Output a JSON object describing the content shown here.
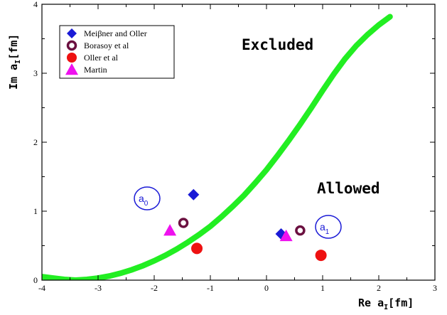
{
  "chart_data": {
    "type": "scatter",
    "xlabel_main": "Re a",
    "xlabel_sub": "I",
    "xlabel_unit": "[fm]",
    "ylabel_main": "Im a",
    "ylabel_sub": "I",
    "ylabel_unit": "[fm]",
    "xlim": [
      -4,
      3
    ],
    "ylim": [
      0,
      4
    ],
    "x_ticks": [
      -4,
      -3,
      -2,
      -1,
      0,
      1,
      2,
      3
    ],
    "y_ticks": [
      0,
      1,
      2,
      3,
      4
    ],
    "grid": false,
    "legend_position": "top-left",
    "annotations": {
      "excluded": "Excluded",
      "allowed": "Allowed",
      "a0_main": "a",
      "a0_sub": "0",
      "a1_main": "a",
      "a1_sub": "1"
    },
    "boundary_curve": {
      "color": "#22ee22",
      "x": [
        -4.0,
        -3.8,
        -3.6,
        -3.4,
        -3.2,
        -3.0,
        -2.8,
        -2.6,
        -2.4,
        -2.2,
        -2.0,
        -1.8,
        -1.6,
        -1.4,
        -1.2,
        -1.0,
        -0.8,
        -0.6,
        -0.4,
        -0.2,
        0.0,
        0.2,
        0.4,
        0.6,
        0.8,
        1.0,
        1.2,
        1.4,
        1.6,
        1.8,
        2.0,
        2.2
      ],
      "y": [
        0.05,
        0.03,
        0.01,
        0.0,
        0.01,
        0.03,
        0.06,
        0.1,
        0.15,
        0.21,
        0.28,
        0.36,
        0.45,
        0.55,
        0.66,
        0.78,
        0.92,
        1.07,
        1.23,
        1.41,
        1.6,
        1.81,
        2.03,
        2.26,
        2.5,
        2.75,
        2.99,
        3.21,
        3.4,
        3.56,
        3.7,
        3.82
      ]
    },
    "series": [
      {
        "name": "Meiβner and Oller",
        "marker": "diamond",
        "color": "#1a1ad6",
        "points": [
          {
            "x": -1.3,
            "y": 1.24
          },
          {
            "x": 0.26,
            "y": 0.67
          }
        ]
      },
      {
        "name": "Borasoy et al",
        "marker": "ring",
        "color": "#6b1040",
        "points": [
          {
            "x": -1.48,
            "y": 0.83
          },
          {
            "x": 0.6,
            "y": 0.72
          }
        ]
      },
      {
        "name": "Oller et al",
        "marker": "circle",
        "color": "#ee1111",
        "points": [
          {
            "x": -1.24,
            "y": 0.46
          },
          {
            "x": 0.97,
            "y": 0.36
          }
        ]
      },
      {
        "name": "Martin",
        "marker": "triangle",
        "color": "#ee11ee",
        "points": [
          {
            "x": -1.72,
            "y": 0.72
          },
          {
            "x": 0.35,
            "y": 0.64
          }
        ]
      }
    ]
  }
}
